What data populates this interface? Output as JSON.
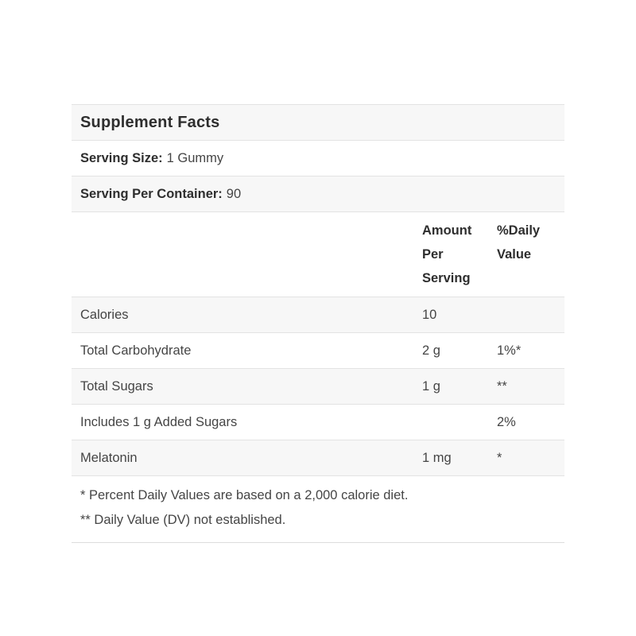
{
  "page": {
    "background": "#ffffff"
  },
  "table": {
    "title": "Supplement Facts",
    "serving_size": {
      "label": "Serving Size:",
      "value": "1 Gummy"
    },
    "servings_per_container": {
      "label": "Serving Per Container:",
      "value": "90"
    },
    "columns": {
      "amount_lines": [
        "Amount",
        "Per",
        "Serving"
      ],
      "daily_value_lines": [
        "%Daily",
        "Value"
      ]
    },
    "rows": [
      {
        "label": "Calories",
        "amount": "10",
        "dv": ""
      },
      {
        "label": "Total Carbohydrate",
        "amount": "2 g",
        "dv": "1%*"
      },
      {
        "label": "Total Sugars",
        "amount": "1 g",
        "dv": "**"
      },
      {
        "label": "Includes 1 g Added Sugars",
        "amount": "",
        "dv": "2%"
      },
      {
        "label": "Melatonin",
        "amount": "1 mg",
        "dv": "*"
      }
    ],
    "footnotes": [
      "* Percent Daily Values are based on a 2,000 calorie diet.",
      "** Daily Value (DV) not established."
    ],
    "colors": {
      "stripe": "#f7f7f7",
      "divider": "#e3e3e3",
      "text": "#454545",
      "heading_text": "#2e2e2e"
    }
  }
}
